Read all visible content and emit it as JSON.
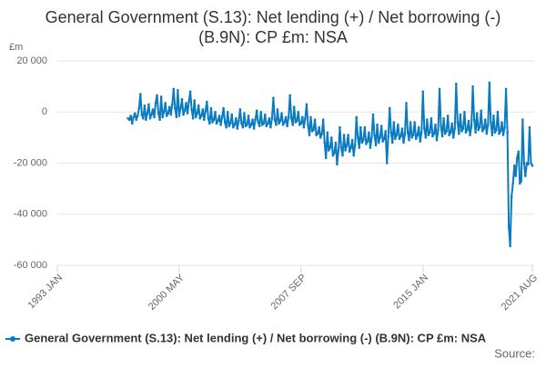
{
  "chart_data": {
    "type": "line",
    "title": "General Government (S.13): Net lending (+) / Net borrowing (-) (B.9N): CP £m: NSA",
    "y_unit": "£m",
    "source": "Source:",
    "legend": "bottom",
    "grid": true,
    "ylim": [
      -60000,
      20000
    ],
    "yticks": [
      {
        "value": -60000,
        "label": "-60 000"
      },
      {
        "value": -40000,
        "label": "-40 000"
      },
      {
        "value": -20000,
        "label": "-20 000"
      },
      0,
      {
        "value": 20000,
        "label": "20 000"
      }
    ],
    "categories": [
      "1993 JAN",
      null,
      null,
      null,
      null,
      null,
      null,
      null,
      null,
      null,
      null,
      null,
      null,
      null,
      null,
      null,
      null,
      null,
      null,
      null,
      null,
      null,
      null,
      null,
      null,
      null,
      null,
      null,
      null,
      null,
      null,
      null,
      null,
      null,
      null,
      null,
      null,
      null,
      null,
      null,
      null,
      null,
      null,
      null,
      null,
      null,
      null,
      null,
      null,
      null,
      null,
      null,
      null,
      null,
      null,
      null,
      null,
      null,
      null,
      null,
      null,
      null,
      null,
      null,
      null,
      null,
      null,
      null,
      null,
      null,
      null,
      null,
      null,
      null,
      null,
      null,
      null,
      null,
      null,
      null,
      null,
      null,
      null,
      null,
      null,
      null,
      null,
      null,
      "2000 MAY",
      null,
      null,
      null,
      null,
      null,
      null,
      null,
      null,
      null,
      null,
      null,
      null,
      null,
      null,
      null,
      null,
      null,
      null,
      null,
      null,
      null,
      null,
      null,
      null,
      null,
      null,
      null,
      null,
      null,
      null,
      null,
      null,
      null,
      null,
      null,
      null,
      null,
      null,
      null,
      null,
      null,
      null,
      null,
      null,
      null,
      null,
      null,
      null,
      null,
      null,
      null,
      null,
      null,
      null,
      null,
      null,
      null,
      null,
      null,
      null,
      null,
      null,
      null,
      null,
      null,
      null,
      null,
      null,
      null,
      null,
      null,
      null,
      null,
      null,
      null,
      null,
      null,
      null,
      null,
      null,
      null,
      null,
      null,
      null,
      null,
      null,
      null,
      "2007 SEP",
      null,
      null,
      null,
      null,
      null,
      null,
      null,
      null,
      null,
      null,
      null,
      null,
      null,
      null,
      null,
      null,
      null,
      null,
      null,
      null,
      null,
      null,
      null,
      null,
      null,
      null,
      null,
      null,
      null,
      null,
      null,
      null,
      null,
      null,
      null,
      null,
      null,
      null,
      null,
      null,
      null,
      null,
      null,
      null,
      null,
      null,
      null,
      null,
      null,
      null,
      null,
      null,
      null,
      null,
      null,
      null,
      null,
      null,
      null,
      null,
      null,
      null,
      null,
      null,
      null,
      null,
      null,
      null,
      null,
      null,
      null,
      null,
      null,
      null,
      null,
      null,
      null,
      null,
      null,
      null,
      null,
      null,
      null,
      null,
      null,
      null,
      null,
      "2015 JAN",
      null,
      null,
      null,
      null,
      null,
      null,
      null,
      null,
      null,
      null,
      null,
      null,
      null,
      null,
      null,
      null,
      null,
      null,
      null,
      null,
      null,
      null,
      null,
      null,
      null,
      null,
      null,
      null,
      null,
      null,
      null,
      null,
      null,
      null,
      null,
      null,
      null,
      null,
      null,
      null,
      null,
      null,
      null,
      null,
      null,
      null,
      null,
      null,
      null,
      null,
      null,
      null,
      null,
      null,
      null,
      null,
      null,
      null,
      null,
      null,
      null,
      null,
      null,
      null,
      null,
      null,
      null,
      null,
      null,
      null,
      null,
      null,
      null,
      null,
      null,
      null,
      null,
      null,
      "2021 AUG"
    ],
    "series": [
      {
        "name": "General Government (S.13): Net lending (+) / Net borrowing (-) (B.9N): CP £m: NSA",
        "color": "#0a7bbf",
        "values": [
          null,
          null,
          null,
          null,
          null,
          null,
          null,
          null,
          null,
          null,
          null,
          null,
          null,
          null,
          null,
          null,
          null,
          null,
          null,
          null,
          null,
          null,
          null,
          null,
          null,
          null,
          null,
          null,
          null,
          null,
          null,
          null,
          null,
          null,
          null,
          null,
          null,
          null,
          null,
          null,
          null,
          null,
          null,
          null,
          null,
          null,
          null,
          null,
          null,
          null,
          null,
          -2500,
          -3000,
          -1500,
          -4500,
          -2000,
          -500,
          -3000,
          -1500,
          1500,
          7000,
          -1000,
          -2500,
          2500,
          -3000,
          -500,
          3000,
          -2500,
          -1000,
          1000,
          -2000,
          3500,
          6500,
          -500,
          -3000,
          6000,
          -2000,
          0,
          3500,
          -1500,
          -500,
          2000,
          -1000,
          3000,
          9000,
          1500,
          -2000,
          8500,
          -1500,
          1500,
          5000,
          -1000,
          500,
          3500,
          -500,
          4000,
          8000,
          1000,
          -2500,
          4500,
          -2000,
          -500,
          2500,
          -2500,
          -1500,
          1000,
          -3000,
          500,
          4000,
          -2500,
          -4500,
          1500,
          -4000,
          -3000,
          0,
          -4500,
          -3500,
          -1500,
          -5000,
          -2000,
          1500,
          -4000,
          -6000,
          0,
          -5500,
          -4500,
          -1000,
          -6000,
          -5000,
          -2500,
          -6500,
          -3500,
          1000,
          -4500,
          -6000,
          -500,
          -5500,
          -5000,
          -1500,
          -6000,
          -5000,
          -3000,
          -6500,
          -3000,
          500,
          -4000,
          -5500,
          0,
          -5000,
          -4500,
          -1000,
          -5500,
          -4500,
          -2500,
          -6000,
          -2500,
          5500,
          -3000,
          -5000,
          1000,
          -4500,
          -3500,
          -500,
          -5000,
          -4000,
          -2000,
          -5500,
          -2000,
          6500,
          -2500,
          -5000,
          2000,
          -4000,
          -3500,
          0,
          -5000,
          -4500,
          -2000,
          -6000,
          -2500,
          3000,
          -5000,
          -9000,
          -2000,
          -7500,
          -7000,
          -3000,
          -9000,
          -8500,
          -6000,
          -10000,
          -8500,
          -3000,
          -12000,
          -18000,
          -8000,
          -15000,
          -14000,
          -10000,
          -17000,
          -16000,
          -12000,
          -20500,
          -15000,
          -6000,
          -14000,
          -17000,
          -9000,
          -15000,
          -13000,
          -9000,
          -15500,
          -14000,
          -11000,
          -17000,
          -13000,
          -2000,
          -10000,
          -14000,
          -6000,
          -12000,
          -11000,
          -6000,
          -12500,
          -11500,
          -8000,
          -14000,
          -10000,
          -1000,
          -9000,
          -13000,
          -5000,
          -12000,
          -10000,
          -5500,
          -11500,
          -10500,
          -7500,
          -20000,
          -9500,
          1500,
          -8000,
          -12000,
          -4000,
          -10500,
          -9000,
          -5000,
          -10500,
          -9500,
          -6500,
          -12000,
          -8500,
          3500,
          -8000,
          -11000,
          -4000,
          -10000,
          -9000,
          -4000,
          -10500,
          -9000,
          -6000,
          -11500,
          -8000,
          8000,
          -6500,
          -10000,
          -3000,
          -9000,
          -8000,
          -2500,
          -9500,
          -8500,
          -5000,
          -11000,
          -7000,
          9000,
          -5500,
          -9500,
          -2500,
          -8500,
          -7500,
          -1500,
          -9000,
          -8000,
          -4500,
          -10000,
          -6500,
          11000,
          -4000,
          -8500,
          -1000,
          -7500,
          -6500,
          0,
          -8000,
          -7000,
          -3500,
          -9000,
          -5500,
          10000,
          -3000,
          -8000,
          -500,
          -7000,
          -6000,
          500,
          -7500,
          -6500,
          -3000,
          -8500,
          -5000,
          11500,
          -4000,
          -9000,
          -1500,
          -8000,
          -7000,
          0,
          -8500,
          -7500,
          -4000,
          -9000,
          -6000,
          9000,
          -8000,
          -45000,
          -52500,
          -33000,
          -28000,
          -21000,
          -25000,
          -18000,
          -15500,
          -28000,
          -27000,
          -3000,
          -20000,
          -25000,
          -20000,
          -20500,
          -6000,
          -20000,
          -21000
        ]
      }
    ]
  }
}
